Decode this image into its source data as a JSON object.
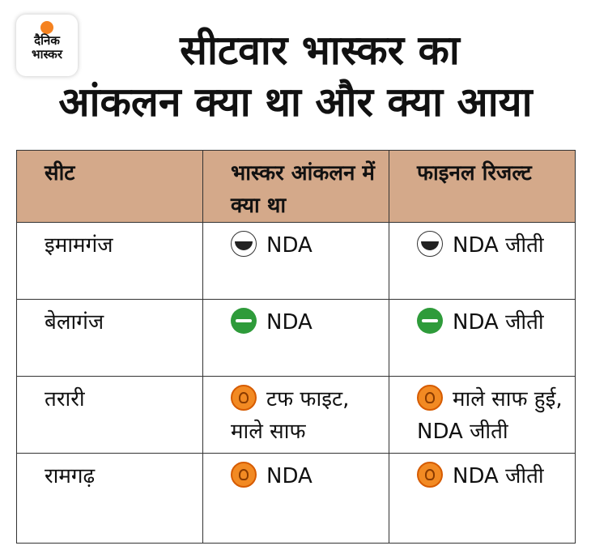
{
  "brand": {
    "line1": "दैनिक",
    "line2": "भास्कर"
  },
  "headline": {
    "line1": "सीटवार भास्कर का",
    "line2": "आंकलन क्या था और क्या आया"
  },
  "table": {
    "headers": {
      "seat": "सीट",
      "prediction": "भास्कर आंकलन में क्या था",
      "result": "फाइनल रिजल्ट"
    },
    "rows": [
      {
        "seat": "इमामगंज",
        "prediction": "NDA",
        "result": "NDA जीती",
        "prediction_icon": "hul-party-icon",
        "result_icon": "hul-party-icon"
      },
      {
        "seat": "बेलागंज",
        "prediction": "NDA",
        "result": "NDA जीती",
        "prediction_icon": "jdu-party-icon",
        "result_icon": "jdu-party-icon"
      },
      {
        "seat": "तरारी",
        "prediction": "टफ फाइट, माले साफ",
        "result": "माले साफ हुई, NDA जीती",
        "prediction_icon": "bjp-lotus-icon",
        "result_icon": "bjp-lotus-icon"
      },
      {
        "seat": "रामगढ़",
        "prediction": "NDA",
        "result": "NDA जीती",
        "prediction_icon": "bjp-lotus-icon",
        "result_icon": "bjp-lotus-icon"
      }
    ]
  },
  "colors": {
    "header_bg": "#d4a98a",
    "jdu_green": "#2e9b3a",
    "bjp_orange": "#f28a23",
    "brand_orange": "#f58220"
  }
}
